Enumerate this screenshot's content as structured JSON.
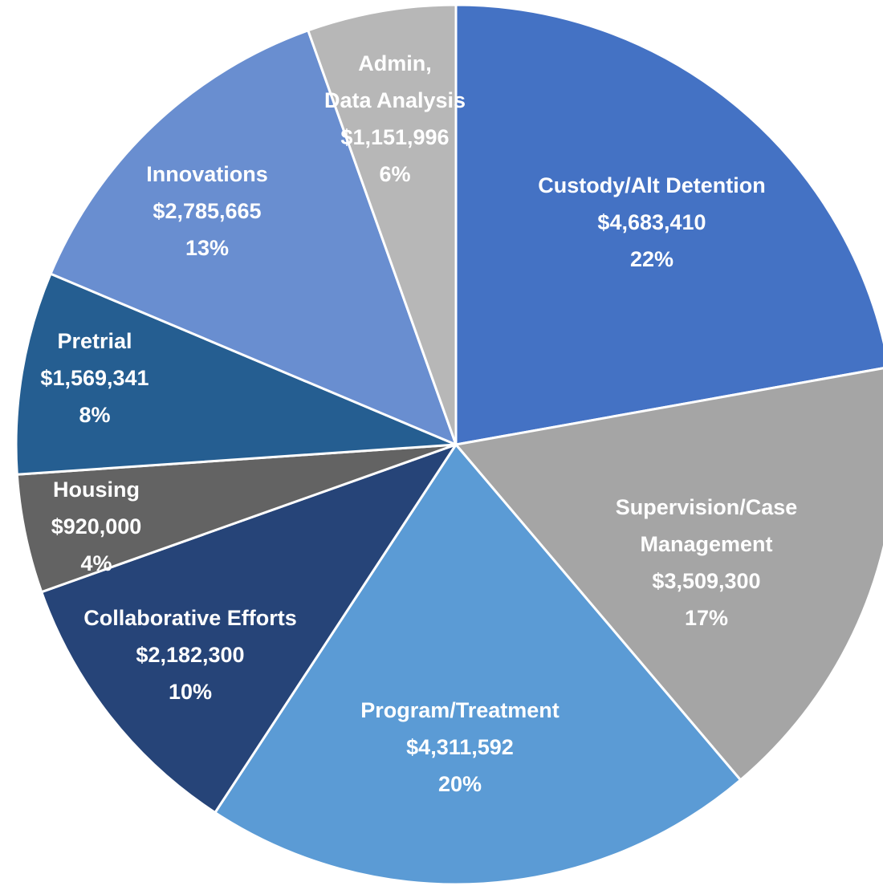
{
  "chart_data": {
    "type": "pie",
    "categories": [
      "Custody/Alt Detention",
      "Supervision/Case\nManagement",
      "Program/Treatment",
      "Collaborative Efforts",
      "Housing",
      "Pretrial",
      "Innovations",
      "Admin,\nData Analysis"
    ],
    "values": [
      4683410,
      3509300,
      4311592,
      2182300,
      920000,
      1569341,
      2785665,
      1151996
    ],
    "value_labels": [
      "$4,683,410",
      "$3,509,300",
      "$4,311,592",
      "$2,182,300",
      "$920,000",
      "$1,569,341",
      "$2,785,665",
      "$1,151,996"
    ],
    "shares": [
      22,
      17,
      20,
      10,
      4,
      8,
      13,
      6
    ],
    "share_labels": [
      "22%",
      "17%",
      "20%",
      "10%",
      "4%",
      "8%",
      "13%",
      "6%"
    ],
    "colors": [
      "#4472c4",
      "#a5a5a5",
      "#5b9bd5",
      "#264478",
      "#636363",
      "#255e91",
      "#698ed0",
      "#b7b7b7"
    ]
  }
}
